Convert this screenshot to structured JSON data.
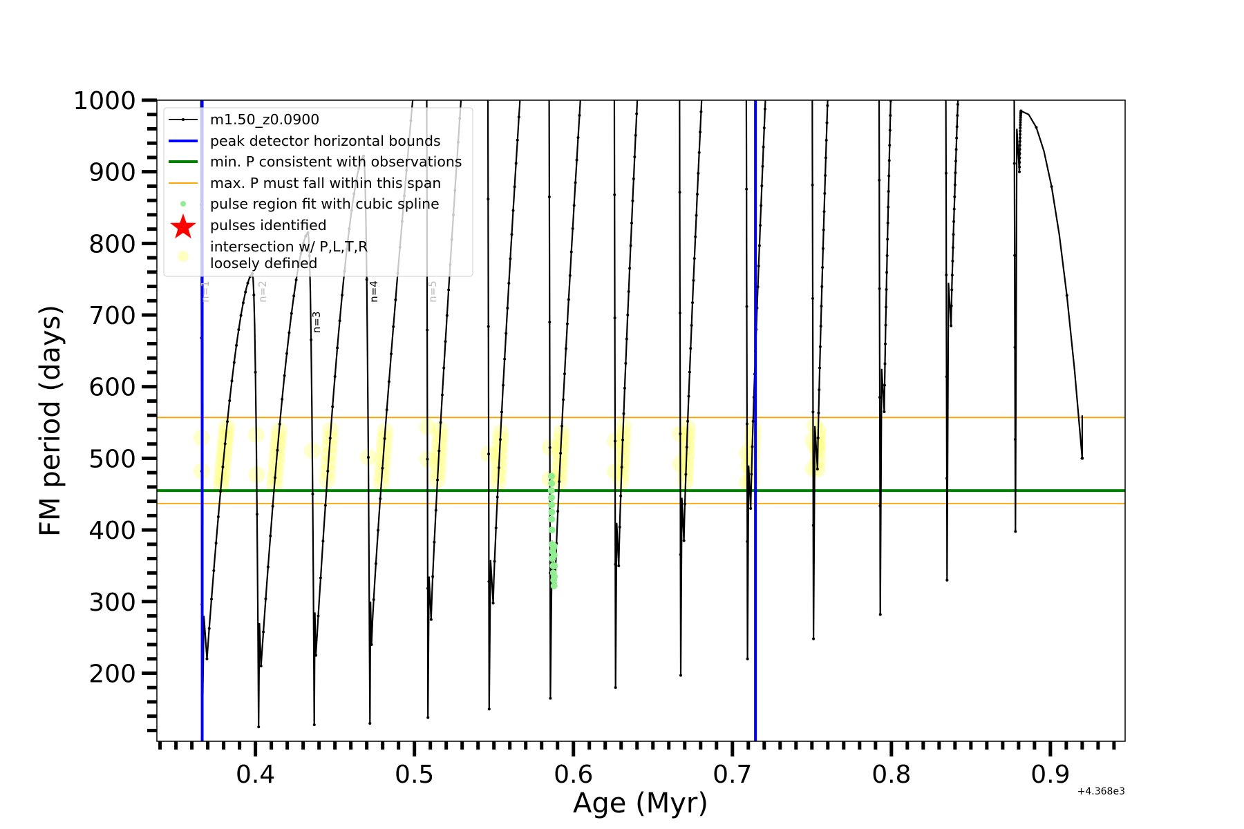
{
  "chart_data": {
    "type": "line",
    "title": "",
    "xlabel": "Age (Myr)",
    "ylabel": "FM period (days)",
    "x_offset_label": "+4.368e3",
    "xlim": [
      0.338,
      0.947
    ],
    "ylim": [
      105,
      1000
    ],
    "xticks": [
      0.4,
      0.5,
      0.6,
      0.7,
      0.8,
      0.9
    ],
    "xtick_labels": [
      "0.4",
      "0.5",
      "0.6",
      "0.7",
      "0.8",
      "0.9"
    ],
    "yticks": [
      200,
      300,
      400,
      500,
      600,
      700,
      800,
      900,
      1000
    ],
    "ytick_labels": [
      "200",
      "300",
      "400",
      "500",
      "600",
      "700",
      "800",
      "900",
      "1000"
    ],
    "grid": false,
    "legend_position": "top-left",
    "legend": [
      {
        "label": "m1.50_z0.0900",
        "kind": "line-marker",
        "color": "#000000"
      },
      {
        "label": "peak detector horizontal bounds",
        "kind": "thick-line",
        "color": "#0000ff"
      },
      {
        "label": "min. P consistent with observations",
        "kind": "thick-line",
        "color": "#008000"
      },
      {
        "label": "max. P must fall within this span",
        "kind": "thin-line",
        "color": "#ffa500"
      },
      {
        "label": "pulse region fit with cubic spline",
        "kind": "dot",
        "color": "#90ee90"
      },
      {
        "label": "pulses identified",
        "kind": "star",
        "color": "#ff0000"
      },
      {
        "label": "intersection w/ P,L,T,R",
        "label2": "loosely defined",
        "kind": "big-dot",
        "color": "#ffff99"
      }
    ],
    "series_name": "m1.50_z0.0900",
    "pulse_cycles": [
      {
        "x_drop": 0.3665,
        "p_min": 110,
        "x_min2": 0.3695,
        "p_min2": 220,
        "x_end": 0.398,
        "p_end": 758
      },
      {
        "x_drop": 0.402,
        "p_min": 125,
        "x_min2": 0.4035,
        "p_min2": 210,
        "x_end": 0.433,
        "p_end": 815
      },
      {
        "x_drop": 0.437,
        "p_min": 128,
        "x_min2": 0.438,
        "p_min2": 225,
        "x_end": 0.468,
        "p_end": 922
      },
      {
        "x_drop": 0.472,
        "p_min": 130,
        "x_min2": 0.473,
        "p_min2": 240,
        "x_end": 0.5005,
        "p_end": 1000
      },
      {
        "x_drop": 0.5085,
        "p_min": 138,
        "x_min2": 0.5105,
        "p_min2": 275,
        "x_end": 0.5305,
        "p_end": 1000
      },
      {
        "x_drop": 0.547,
        "p_min": 150,
        "x_min2": 0.5495,
        "p_min2": 298,
        "x_end": 0.5675,
        "p_end": 1000
      },
      {
        "x_drop": 0.5855,
        "p_min": 165,
        "x_min2": 0.5885,
        "p_min2": 325,
        "x_end": 0.6055,
        "p_end": 1000
      },
      {
        "x_drop": 0.6265,
        "p_min": 180,
        "x_min2": 0.6285,
        "p_min2": 350,
        "x_end": 0.641,
        "p_end": 1000
      },
      {
        "x_drop": 0.6675,
        "p_min": 197,
        "x_min2": 0.6695,
        "p_min2": 385,
        "x_end": 0.6815,
        "p_end": 1000
      },
      {
        "x_drop": 0.7095,
        "p_min": 220,
        "x_min2": 0.7115,
        "p_min2": 430,
        "x_end": 0.7215,
        "p_end": 1000
      },
      {
        "x_drop": 0.751,
        "p_min": 248,
        "x_min2": 0.7535,
        "p_min2": 485,
        "x_end": 0.7605,
        "p_end": 1000
      },
      {
        "x_drop": 0.793,
        "p_min": 282,
        "x_min2": 0.7955,
        "p_min2": 565,
        "x_end": 0.8,
        "p_end": 1000
      },
      {
        "x_drop": 0.835,
        "p_min": 330,
        "x_min2": 0.8375,
        "p_min2": 685,
        "x_end": 0.8425,
        "p_end": 1000
      },
      {
        "x_drop": 0.878,
        "p_min": 398,
        "x_min2": 0.8805,
        "p_min2": 900,
        "x_end": 0.8815,
        "p_end": 985
      },
      {
        "x_drop": 0.92,
        "p_min": 500,
        "x_min2": 0.92,
        "p_min2": 500,
        "x_end": 0.92,
        "p_end": 500
      }
    ],
    "vertical_bounds_x": [
      0.3665,
      0.7145
    ],
    "min_p_line": 455,
    "max_p_span": [
      437,
      557
    ],
    "loosely_defined_range": [
      462,
      545
    ],
    "loosely_defined_cycles": 11,
    "spline_points": [
      [
        0.5862,
        475
      ],
      [
        0.5863,
        465
      ],
      [
        0.5861,
        455
      ],
      [
        0.5862,
        445
      ],
      [
        0.5863,
        435
      ],
      [
        0.5864,
        425
      ],
      [
        0.5863,
        415
      ],
      [
        0.5865,
        400
      ],
      [
        0.5866,
        380
      ],
      [
        0.587,
        370
      ],
      [
        0.5875,
        375
      ],
      [
        0.5868,
        360
      ],
      [
        0.5872,
        350
      ],
      [
        0.5874,
        340
      ],
      [
        0.5876,
        330
      ],
      [
        0.5878,
        322
      ],
      [
        0.588,
        335
      ],
      [
        0.5881,
        350
      ],
      [
        0.5879,
        365
      ],
      [
        0.5877,
        378
      ]
    ],
    "n_labels": [
      {
        "text": "n=1",
        "x": 0.3685,
        "p": 745,
        "color": "#bbbbbb"
      },
      {
        "text": "n=2",
        "x": 0.4045,
        "p": 780,
        "color": "#bbbbbb"
      },
      {
        "text": "n=3",
        "x": 0.4385,
        "p": 690,
        "color": "#000000"
      },
      {
        "text": "n=4",
        "x": 0.4745,
        "p": 755,
        "color": "#000000"
      },
      {
        "text": "n=5",
        "x": 0.5115,
        "p": 905,
        "color": "#bbbbbb"
      }
    ]
  }
}
